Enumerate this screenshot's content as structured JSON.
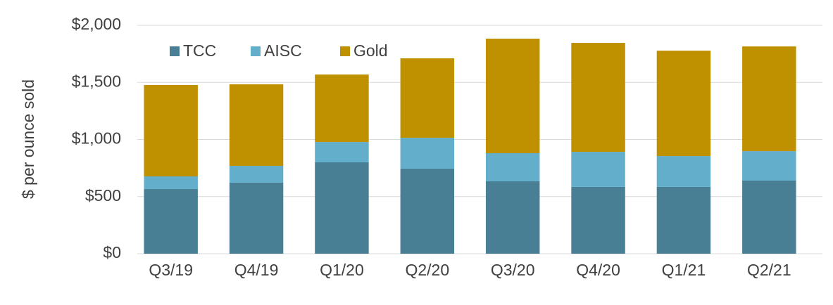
{
  "chart_data": {
    "type": "stacked-bar",
    "y_label": "$ per ounce sold",
    "categories": [
      "Q3/19",
      "Q4/19",
      "Q1/20",
      "Q2/20",
      "Q3/20",
      "Q4/20",
      "Q1/21",
      "Q2/21"
    ],
    "series": [
      {
        "name": "TCC",
        "color": "#487f94",
        "values": [
          566,
          622,
          800,
          745,
          634,
          585,
          585,
          640
        ]
      },
      {
        "name": "AISC",
        "color": "#63aecb",
        "values": [
          111,
          147,
          178,
          270,
          246,
          307,
          270,
          258
        ]
      },
      {
        "name": "Gold",
        "color": "#bf9000",
        "values": [
          800,
          714,
          591,
          696,
          1003,
          954,
          923,
          917
        ]
      }
    ],
    "ylim": [
      0,
      2000
    ],
    "yticks": [
      {
        "value": 0,
        "label": "$0"
      },
      {
        "value": 500,
        "label": "$500"
      },
      {
        "value": 1000,
        "label": "$1,000"
      },
      {
        "value": 1500,
        "label": "$1,500"
      },
      {
        "value": 2000,
        "label": "$2,000"
      }
    ],
    "grid": true,
    "legend": "top-left"
  }
}
